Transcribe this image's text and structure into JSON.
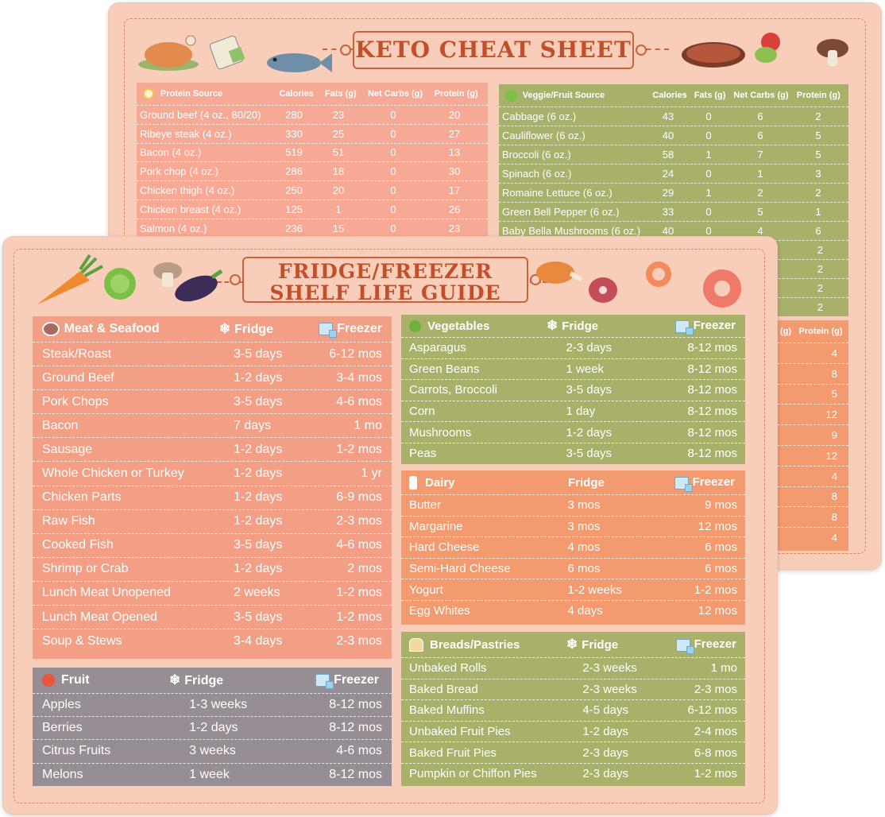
{
  "keto": {
    "title": "KETO CHEAT SHEET",
    "protein": {
      "headers": [
        "Protein Source",
        "Calories",
        "Fats (g)",
        "Net Carbs (g)",
        "Protein (g)"
      ],
      "rows": [
        [
          "Ground beef (4 oz., 80/20)",
          "280",
          "23",
          "0",
          "20"
        ],
        [
          "Ribeye steak (4 oz.)",
          "330",
          "25",
          "0",
          "27"
        ],
        [
          "Bacon (4 oz.)",
          "519",
          "51",
          "0",
          "13"
        ],
        [
          "Pork chop (4 oz.)",
          "286",
          "18",
          "0",
          "30"
        ],
        [
          "Chicken thigh (4 oz.)",
          "250",
          "20",
          "0",
          "17"
        ],
        [
          "Chicken breast (4 oz.)",
          "125",
          "1",
          "0",
          "26"
        ],
        [
          "Salmon (4 oz.)",
          "236",
          "15",
          "0",
          "23"
        ]
      ]
    },
    "veggie": {
      "headers": [
        "Veggie/Fruit Source",
        "Calories",
        "Fats (g)",
        "Net Carbs (g)",
        "Protein (g)"
      ],
      "rows": [
        [
          "Cabbage (6 oz.)",
          "43",
          "0",
          "6",
          "2"
        ],
        [
          "Cauliflower (6 oz.)",
          "40",
          "0",
          "6",
          "5"
        ],
        [
          "Broccoli (6 oz.)",
          "58",
          "1",
          "7",
          "5"
        ],
        [
          "Spinach (6 oz.)",
          "24",
          "0",
          "1",
          "3"
        ],
        [
          "Romaine Lettuce (6 oz.)",
          "29",
          "1",
          "2",
          "2"
        ],
        [
          "Green Bell Pepper (6 oz.)",
          "33",
          "0",
          "5",
          "1"
        ],
        [
          "Baby Bella Mushrooms (6 oz.)",
          "40",
          "0",
          "4",
          "6"
        ]
      ],
      "extra_protein": [
        "2",
        "2",
        "2",
        "2"
      ]
    },
    "lower_right": {
      "header_partial": "(g)",
      "header_protein": "Protein (g)",
      "values": [
        "4",
        "8",
        "5",
        "12",
        "9",
        "12",
        "4",
        "8",
        "8",
        "4"
      ]
    }
  },
  "guide": {
    "title_line1": "FRIDGE/FREEZER",
    "title_line2": "SHELF LIFE GUIDE",
    "meat": {
      "title": "Meat & Seafood",
      "fridge": "Fridge",
      "freezer": "Freezer",
      "rows": [
        [
          "Steak/Roast",
          "3-5 days",
          "6-12 mos"
        ],
        [
          "Ground Beef",
          "1-2 days",
          "3-4 mos"
        ],
        [
          "Pork Chops",
          "3-5 days",
          "4-6 mos"
        ],
        [
          "Bacon",
          "7 days",
          "1 mo"
        ],
        [
          "Sausage",
          "1-2 days",
          "1-2 mos"
        ],
        [
          "Whole Chicken or Turkey",
          "1-2 days",
          "1 yr"
        ],
        [
          "Chicken Parts",
          "1-2 days",
          "6-9 mos"
        ],
        [
          "Raw Fish",
          "1-2 days",
          "2-3 mos"
        ],
        [
          "Cooked Fish",
          "3-5 days",
          "4-6 mos"
        ],
        [
          "Shrimp or Crab",
          "1-2 days",
          "2 mos"
        ],
        [
          "Lunch Meat Unopened",
          "2 weeks",
          "1-2 mos"
        ],
        [
          "Lunch Meat Opened",
          "3-5 days",
          "1-2 mos"
        ],
        [
          "Soup & Stews",
          "3-4 days",
          "2-3 mos"
        ]
      ]
    },
    "fruit": {
      "title": "Fruit",
      "fridge": "Fridge",
      "freezer": "Freezer",
      "rows": [
        [
          "Apples",
          "1-3 weeks",
          "8-12 mos"
        ],
        [
          "Berries",
          "1-2 days",
          "8-12 mos"
        ],
        [
          "Citrus Fruits",
          "3 weeks",
          "4-6 mos"
        ],
        [
          "Melons",
          "1 week",
          "8-12 mos"
        ]
      ]
    },
    "veg": {
      "title": "Vegetables",
      "fridge": "Fridge",
      "freezer": "Freezer",
      "rows": [
        [
          "Asparagus",
          "2-3 days",
          "8-12 mos"
        ],
        [
          "Green Beans",
          "1 week",
          "8-12 mos"
        ],
        [
          "Carrots, Broccoli",
          "3-5 days",
          "8-12 mos"
        ],
        [
          "Corn",
          "1 day",
          "8-12 mos"
        ],
        [
          "Mushrooms",
          "1-2 days",
          "8-12 mos"
        ],
        [
          "Peas",
          "3-5 days",
          "8-12 mos"
        ]
      ]
    },
    "dairy": {
      "title": "Dairy",
      "fridge": "Fridge",
      "freezer": "Freezer",
      "rows": [
        [
          "Butter",
          "3 mos",
          "9 mos"
        ],
        [
          "Margarine",
          "3 mos",
          "12 mos"
        ],
        [
          "Hard Cheese",
          "4 mos",
          "6 mos"
        ],
        [
          "Semi-Hard Cheese",
          "6 mos",
          "6 mos"
        ],
        [
          "Yogurt",
          "1-2 weeks",
          "1-2 mos"
        ],
        [
          "Egg Whites",
          "4 days",
          "12 mos"
        ]
      ]
    },
    "bread": {
      "title": "Breads/Pastries",
      "fridge": "Fridge",
      "freezer": "Freezer",
      "rows": [
        [
          "Unbaked Rolls",
          "2-3 weeks",
          "1 mo"
        ],
        [
          "Baked Bread",
          "2-3 weeks",
          "2-3 mos"
        ],
        [
          "Baked Muffins",
          "4-5 days",
          "6-12 mos"
        ],
        [
          "Unbaked Fruit Pies",
          "1-2 days",
          "2-4 mos"
        ],
        [
          "Baked Fruit Pies",
          "2-3 days",
          "6-8 mos"
        ],
        [
          "Pumpkin or Chiffon Pies",
          "2-3 days",
          "1-2 mos"
        ]
      ]
    }
  },
  "colors": {
    "card": "#f8cdb9",
    "salmon": "#f29f86",
    "salmon_back": "#f6a994",
    "olive": "#a9b06a",
    "orange": "#f49a6f",
    "mauve": "#978d95",
    "title": "#c24f2a"
  }
}
